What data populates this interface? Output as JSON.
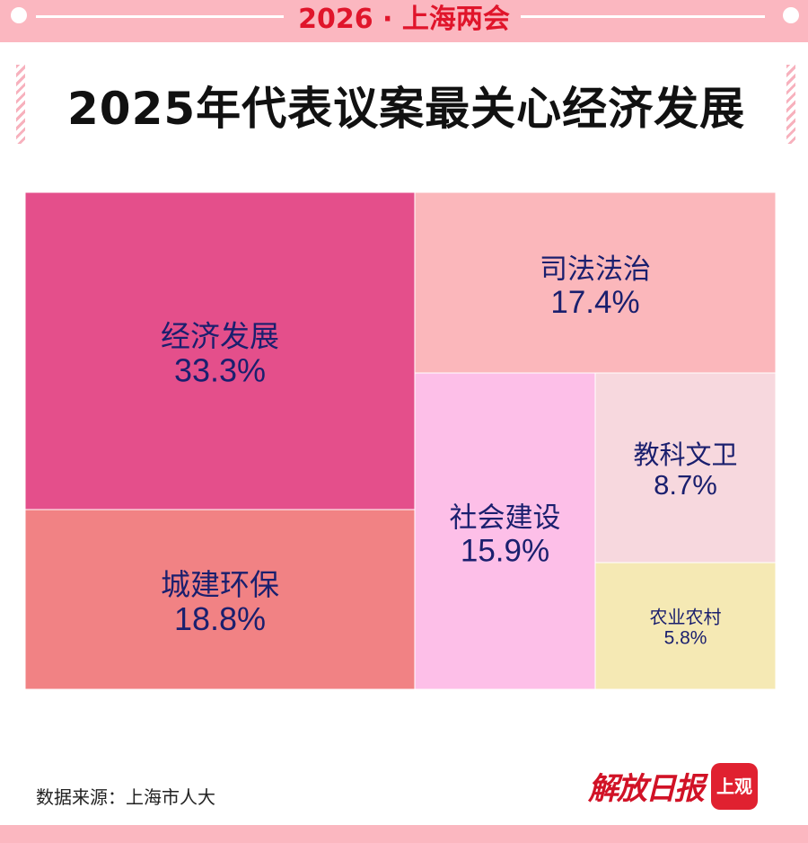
{
  "header": {
    "banner": "2026 · 上海两会"
  },
  "title": "2025年代表议案最关心经济发展",
  "chart_data": {
    "type": "treemap",
    "title": "2025年代表议案最关心经济发展",
    "items": [
      {
        "name": "经济发展",
        "value": 33.3,
        "label": "33.3%",
        "color": "#e44f8b"
      },
      {
        "name": "城建环保",
        "value": 18.8,
        "label": "18.8%",
        "color": "#f18284"
      },
      {
        "name": "司法法治",
        "value": 17.4,
        "label": "17.4%",
        "color": "#fbb7bb"
      },
      {
        "name": "社会建设",
        "value": 15.9,
        "label": "15.9%",
        "color": "#fdbfe8"
      },
      {
        "name": "教科文卫",
        "value": 8.7,
        "label": "8.7%",
        "color": "#f7d8de"
      },
      {
        "name": "农业农村",
        "value": 5.8,
        "label": "5.8%",
        "color": "#f5e9b4"
      }
    ],
    "label_color": "#1a1f6e"
  },
  "footer": {
    "source": "数据来源：上海市人大",
    "brand_script": "解放日报",
    "brand_badge": "上观"
  }
}
